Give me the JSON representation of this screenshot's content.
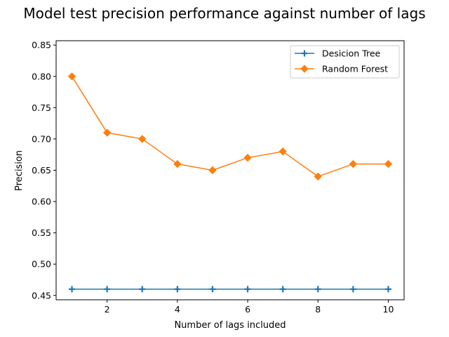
{
  "chart_data": {
    "type": "line",
    "title": "Model test precision performance against number of lags",
    "xlabel": "Number of lags included",
    "ylabel": "Precision",
    "x": [
      1,
      2,
      3,
      4,
      5,
      6,
      7,
      8,
      9,
      10
    ],
    "xlim": [
      0.55,
      10.45
    ],
    "ylim": [
      0.443,
      0.857
    ],
    "xticks": [
      2,
      4,
      6,
      8,
      10
    ],
    "yticks": [
      0.45,
      0.5,
      0.55,
      0.6,
      0.65,
      0.7,
      0.75,
      0.8,
      0.85
    ],
    "legend_position": "top-right",
    "grid": false,
    "series": [
      {
        "name": "Desicion Tree",
        "color": "#1f77b4",
        "marker": "plus",
        "values": [
          0.46,
          0.46,
          0.46,
          0.46,
          0.46,
          0.46,
          0.46,
          0.46,
          0.46,
          0.46
        ]
      },
      {
        "name": "Random Forest",
        "color": "#ff7f0e",
        "marker": "diamond",
        "values": [
          0.8,
          0.71,
          0.7,
          0.66,
          0.65,
          0.67,
          0.68,
          0.64,
          0.66,
          0.66
        ]
      }
    ]
  }
}
